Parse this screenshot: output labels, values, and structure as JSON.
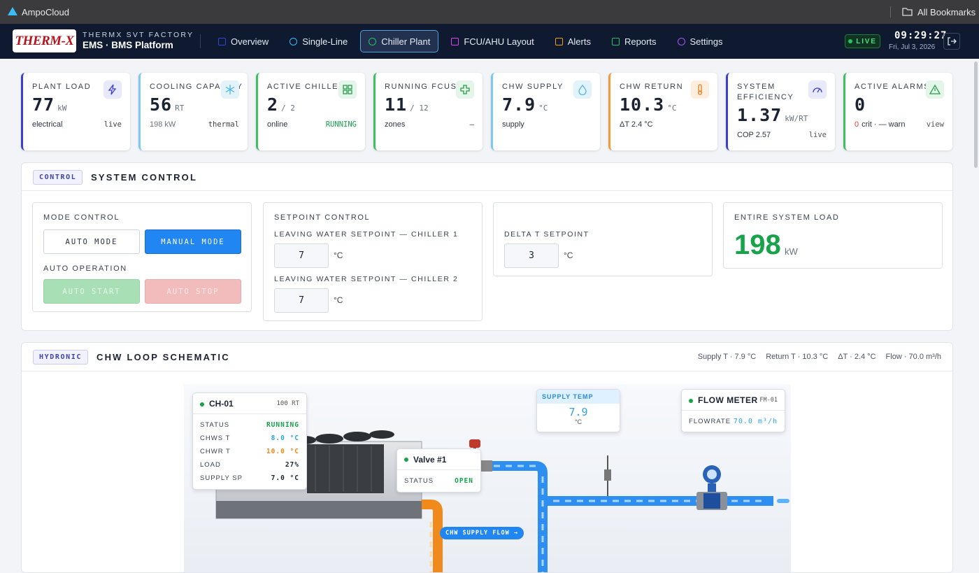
{
  "browser": {
    "app_name": "AmpoCloud",
    "bookmarks": "All Bookmarks"
  },
  "header": {
    "logo": "THERM-X",
    "factory": "THERMX SVT FACTORY",
    "platform": "EMS · BMS Platform",
    "nav": [
      "Overview",
      "Single-Line",
      "Chiller Plant",
      "FCU/AHU Layout",
      "Alerts",
      "Reports",
      "Settings"
    ],
    "status": "LIVE",
    "time": "09:29:27",
    "date": "Fri, Jul 3, 2026"
  },
  "kpis": [
    {
      "label": "PLANT LOAD",
      "value": "77",
      "unit": "kW",
      "left": "electrical",
      "right": "live"
    },
    {
      "label": "COOLING CAPACITY",
      "value": "56",
      "unit": "RT",
      "left": "198 kW",
      "right": "thermal"
    },
    {
      "label": "ACTIVE CHILLERS",
      "value": "2",
      "unit": "/ 2",
      "left": "online",
      "right": "RUNNING"
    },
    {
      "label": "RUNNING FCUS",
      "value": "11",
      "unit": "/ 12",
      "left": "zones",
      "right": "—"
    },
    {
      "label": "CHW SUPPLY",
      "value": "7.9",
      "unit": "°C",
      "left": "supply"
    },
    {
      "label": "CHW RETURN",
      "value": "10.3",
      "unit": "°C",
      "left": "ΔT 2.4 °C"
    },
    {
      "label": "SYSTEM EFFICIENCY",
      "value": "1.37",
      "unit": "kW/RT",
      "left": "COP 2.57",
      "right": "live"
    },
    {
      "label": "ACTIVE ALARMS",
      "value": "0",
      "left_count": "0",
      "left": "crit · — warn",
      "right": "view"
    }
  ],
  "control": {
    "tag": "CONTROL",
    "title": "SYSTEM CONTROL",
    "mode": {
      "title": "MODE CONTROL",
      "auto": "AUTO MODE",
      "manual": "MANUAL MODE",
      "operation": "AUTO OPERATION",
      "start": "AUTO START",
      "stop": "AUTO STOP"
    },
    "setpoint": {
      "title": "SETPOINT CONTROL",
      "ch1_label": "LEAVING WATER SETPOINT — CHILLER 1",
      "ch1_value": "7",
      "ch1_unit": "°C",
      "ch2_label": "LEAVING WATER SETPOINT — CHILLER 2",
      "ch2_value": "7",
      "ch2_unit": "°C"
    },
    "delta": {
      "label": "DELTA T SETPOINT",
      "value": "3",
      "unit": "°C"
    },
    "load": {
      "label": "ENTIRE SYSTEM LOAD",
      "value": "198",
      "unit": "kW"
    }
  },
  "schematic": {
    "tag": "HYDRONIC",
    "title": "CHW LOOP SCHEMATIC",
    "stats": [
      "Supply T · 7.9 °C",
      "Return T · 10.3 °C",
      "ΔT · 2.4 °C",
      "Flow · 70.0 m³/h"
    ],
    "chiller": {
      "name": "CH-01",
      "capacity": "100 RT",
      "rows": [
        [
          "STATUS",
          "RUNNING"
        ],
        [
          "CHWS T",
          "8.0 °C"
        ],
        [
          "CHWR T",
          "10.0 °C"
        ],
        [
          "LOAD",
          "27%"
        ],
        [
          "SUPPLY SP",
          "7.0 °C"
        ]
      ]
    },
    "valve": {
      "name": "Valve #1",
      "status_label": "STATUS",
      "status": "OPEN"
    },
    "supply_temp": {
      "label": "SUPPLY TEMP",
      "value": "7.9",
      "unit": "°C"
    },
    "flow_meter": {
      "name": "FLOW METER",
      "id": "FM-01",
      "label": "FLOWRATE",
      "value": "70.0 m³/h"
    },
    "pipe_label": "CHW SUPPLY FLOW →"
  }
}
